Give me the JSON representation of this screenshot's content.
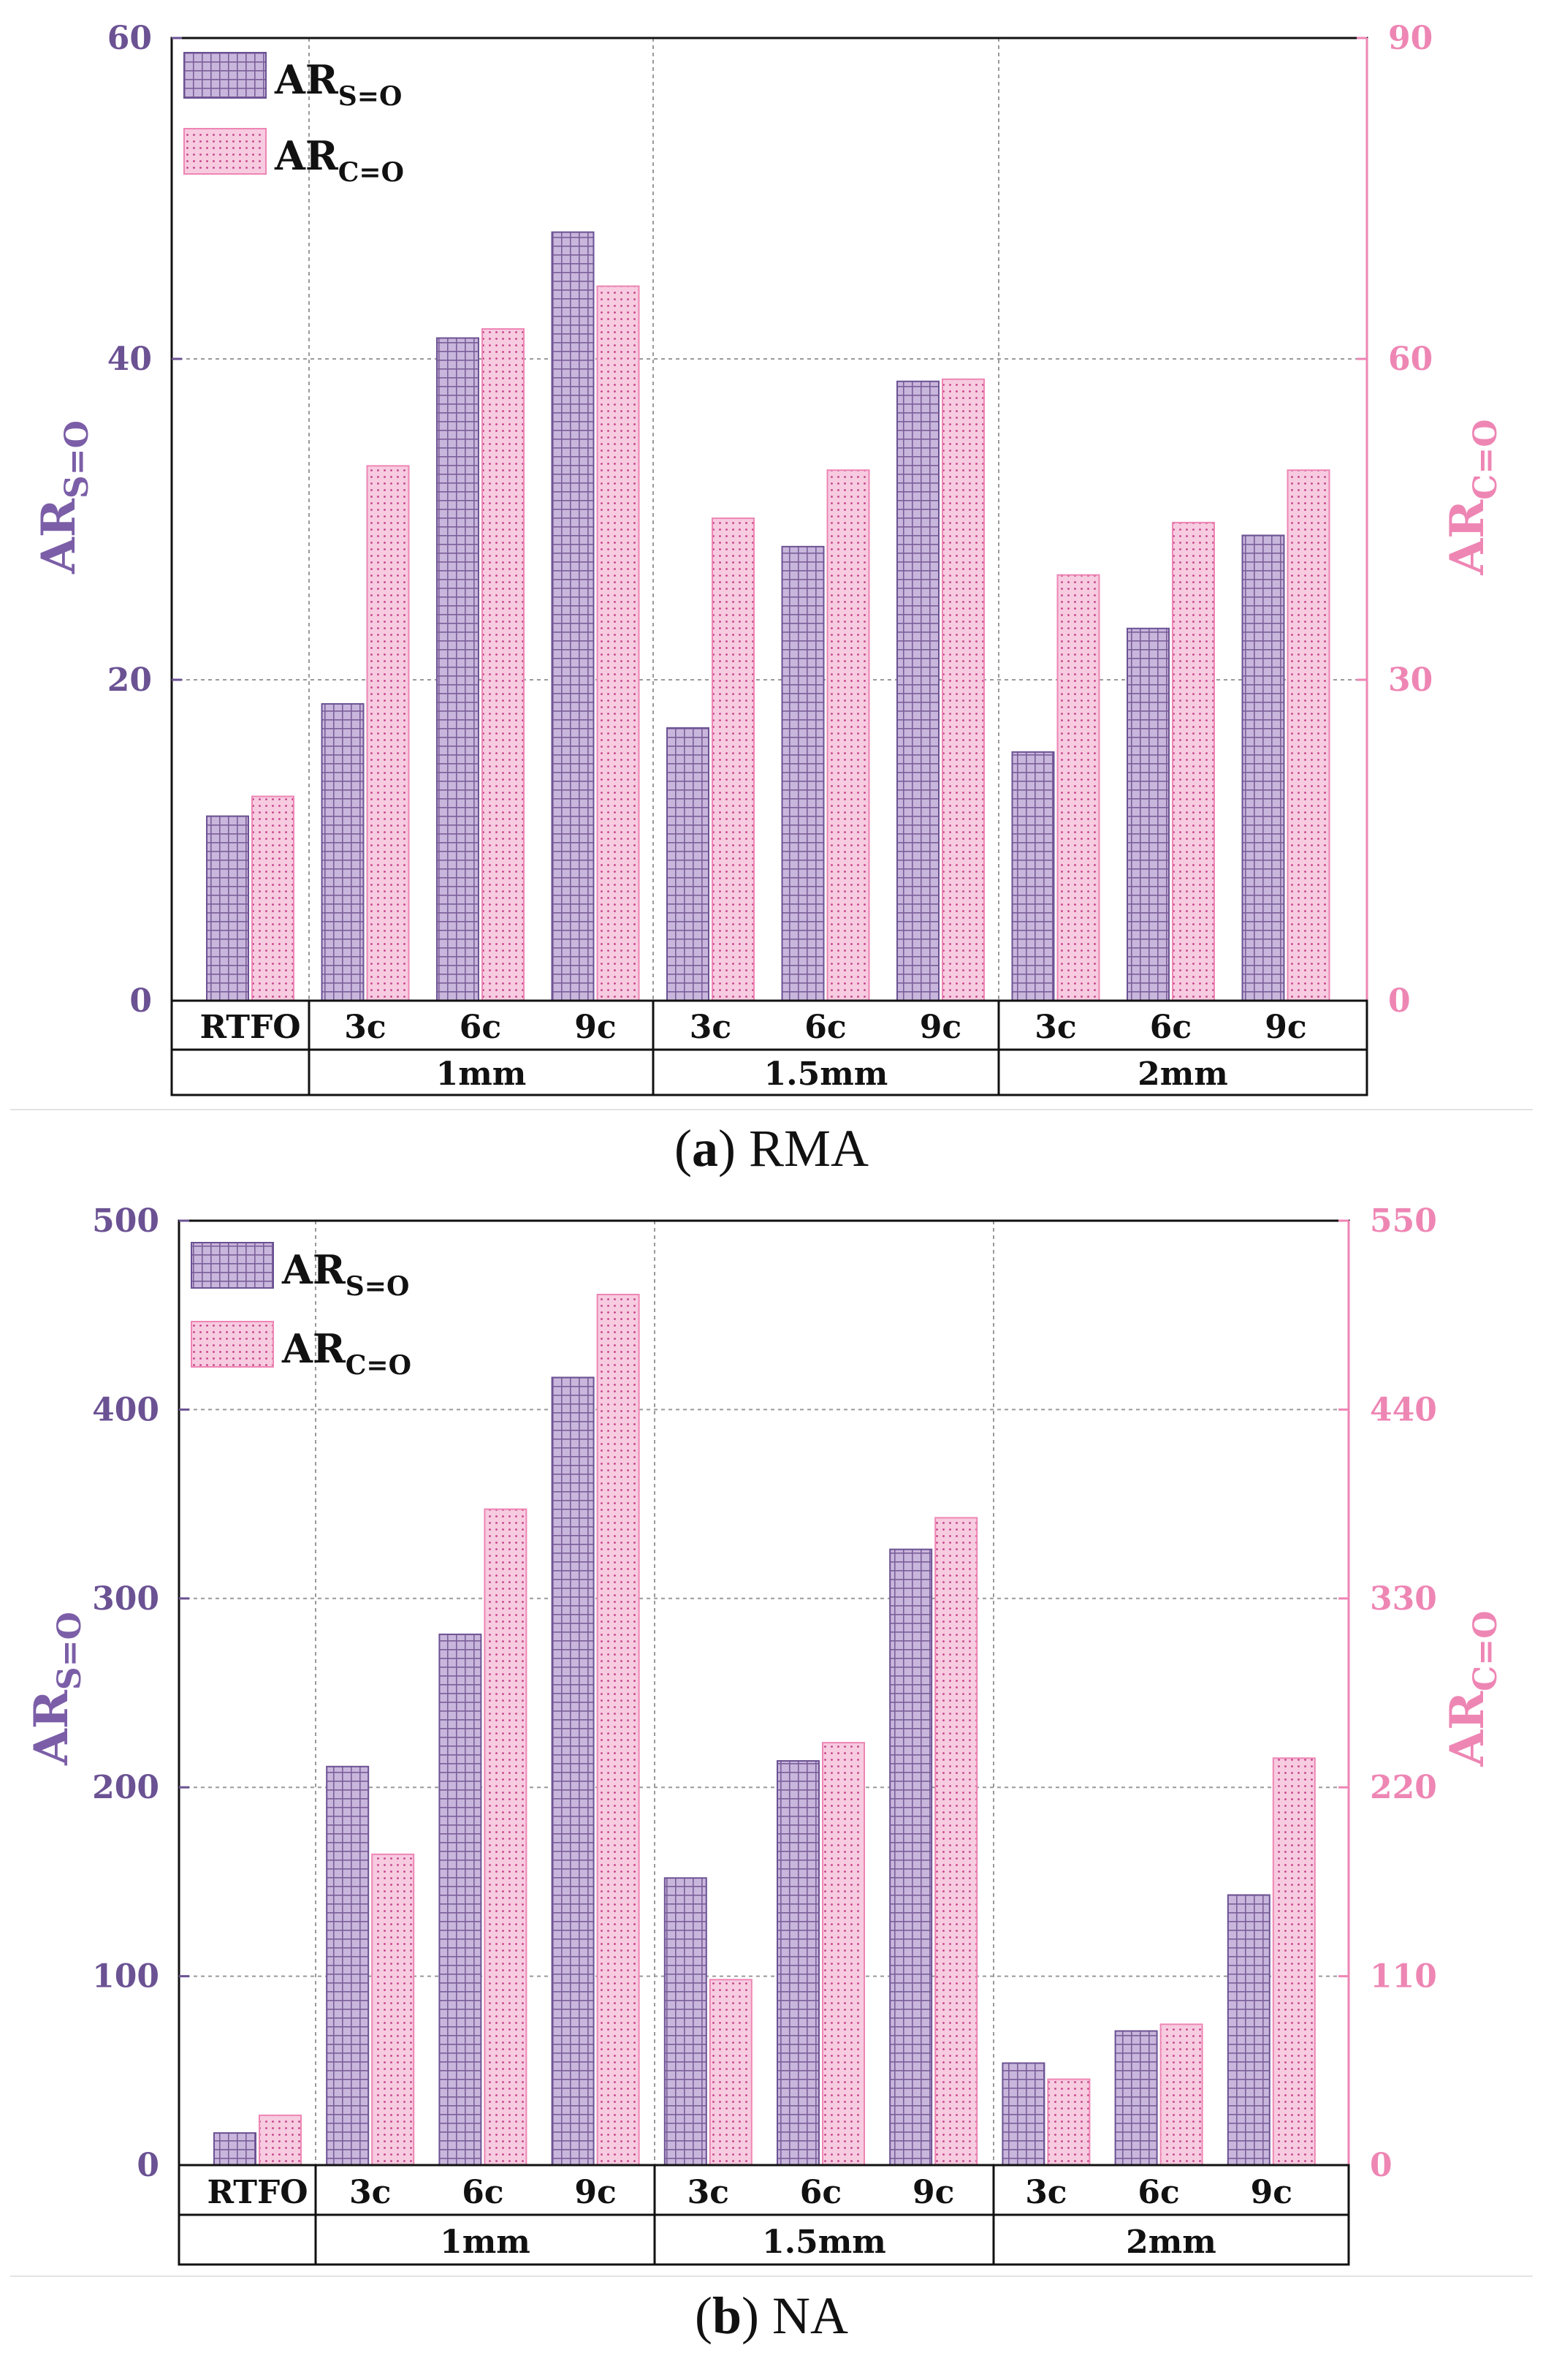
{
  "colors": {
    "s_axis": "#6b5293",
    "c_axis": "#ee86b4",
    "s_fill": "#c9b6dc",
    "s_grid": "#7a5f9a",
    "c_fill": "#f7cbe0",
    "c_dot": "#c23f86",
    "frame": "#111111",
    "gridline": "#9a9a9a"
  },
  "legend": {
    "s_base": "AR",
    "s_sub": "S=O",
    "c_base": "AR",
    "c_sub": "C=O"
  },
  "axis_titles": {
    "left_base": "AR",
    "left_sub": "S=O",
    "right_base": "AR",
    "right_sub": "C=O"
  },
  "chart_data": [
    {
      "type": "bar",
      "panel_id": "a",
      "caption_letter": "a",
      "caption_text": " RMA",
      "categories": [
        "RTFO",
        "3c",
        "6c",
        "9c",
        "3c",
        "6c",
        "9c",
        "3c",
        "6c",
        "9c"
      ],
      "groups": [
        {
          "label": "",
          "span": [
            0,
            0
          ]
        },
        {
          "label": "1mm",
          "span": [
            1,
            3
          ]
        },
        {
          "label": "1.5mm",
          "span": [
            4,
            6
          ]
        },
        {
          "label": "2mm",
          "span": [
            7,
            9
          ]
        }
      ],
      "series": [
        {
          "name": "AR S=O",
          "axis": "left",
          "values": [
            11.5,
            18.5,
            41.3,
            47.9,
            17.0,
            28.3,
            38.6,
            15.5,
            23.2,
            29.0
          ]
        },
        {
          "name": "AR C=O",
          "axis": "right",
          "values": [
            19.1,
            50.0,
            62.8,
            66.8,
            45.1,
            49.6,
            58.1,
            39.8,
            44.7,
            49.6
          ]
        }
      ],
      "ylim_left": [
        0,
        60
      ],
      "yticks_left": [
        0,
        20,
        40,
        60
      ],
      "ylim_right": [
        0,
        90
      ],
      "yticks_right": [
        0,
        30,
        60,
        90
      ],
      "ylabel_left": "AR S=O",
      "ylabel_right": "AR C=O"
    },
    {
      "type": "bar",
      "panel_id": "b",
      "caption_letter": "b",
      "caption_text": " NA",
      "categories": [
        "RTFO",
        "3c",
        "6c",
        "9c",
        "3c",
        "6c",
        "9c",
        "3c",
        "6c",
        "9c"
      ],
      "groups": [
        {
          "label": "",
          "span": [
            0,
            0
          ]
        },
        {
          "label": "1mm",
          "span": [
            1,
            3
          ]
        },
        {
          "label": "1.5mm",
          "span": [
            4,
            6
          ]
        },
        {
          "label": "2mm",
          "span": [
            7,
            9
          ]
        }
      ],
      "series": [
        {
          "name": "AR S=O",
          "axis": "left",
          "values": [
            17,
            211,
            281,
            417,
            152,
            214,
            326,
            54,
            71,
            143
          ]
        },
        {
          "name": "AR C=O",
          "axis": "right",
          "values": [
            29,
            181,
            382,
            507,
            108,
            246,
            377,
            50,
            82,
            237
          ]
        }
      ],
      "ylim_left": [
        0,
        500
      ],
      "yticks_left": [
        0,
        100,
        200,
        300,
        400,
        500
      ],
      "ylim_right": [
        0,
        550
      ],
      "yticks_right": [
        0,
        110,
        220,
        330,
        440,
        550
      ],
      "ylabel_left": "AR S=O",
      "ylabel_right": "AR C=O"
    }
  ]
}
